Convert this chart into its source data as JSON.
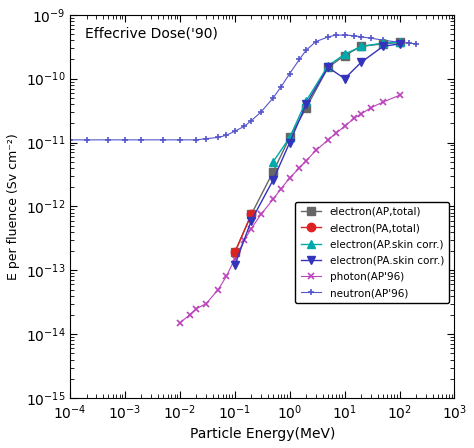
{
  "title": "Effecrive Dose('90)",
  "xlabel": "Particle Energy(MeV)",
  "ylabel": "E per fluence (Sv cm⁻²)",
  "xlim_log": [
    -4,
    3
  ],
  "ylim_log": [
    -15,
    -9
  ],
  "electron_AP_total": {
    "x": [
      0.1,
      0.2,
      0.5,
      1.0,
      2.0,
      5.0,
      10.0,
      20.0,
      50.0,
      100.0
    ],
    "y": [
      1.9e-13,
      7.5e-13,
      3.5e-12,
      1.2e-11,
      3.5e-11,
      1.5e-10,
      2.3e-10,
      3.2e-10,
      3.5e-10,
      3.7e-10
    ],
    "color": "#666666",
    "marker": "s",
    "label": "electron(AP,total)"
  },
  "electron_PA_total": {
    "x": [
      0.1,
      0.2
    ],
    "y": [
      1.9e-13,
      7.5e-13
    ],
    "color": "#dd2222",
    "marker": "o",
    "label": "electron(PA,total)"
  },
  "electron_AP_skin": {
    "x": [
      0.5,
      1.0,
      2.0,
      5.0,
      10.0,
      20.0,
      50.0,
      100.0
    ],
    "y": [
      5e-12,
      1.2e-11,
      4.5e-11,
      1.6e-10,
      2.4e-10,
      3.2e-10,
      3.6e-10,
      3.7e-10
    ],
    "color": "#00aaaa",
    "marker": "^",
    "label": "electron(AP.skin corr.)"
  },
  "electron_PA_skin": {
    "x": [
      0.1,
      0.2,
      0.5,
      1.0,
      2.0,
      5.0,
      10.0,
      20.0,
      50.0,
      100.0
    ],
    "y": [
      1.2e-13,
      6e-13,
      2.6e-12,
      1e-11,
      4e-11,
      1.5e-10,
      1e-10,
      1.8e-10,
      3.2e-10,
      3.5e-10
    ],
    "color": "#3333bb",
    "marker": "v",
    "label": "electron(PA.skin corr.)"
  },
  "photon_AP96": {
    "x": [
      0.01,
      0.015,
      0.02,
      0.03,
      0.05,
      0.07,
      0.1,
      0.15,
      0.2,
      0.3,
      0.5,
      0.7,
      1.0,
      1.5,
      2.0,
      3.0,
      5.0,
      7.0,
      10.0,
      15.0,
      20.0,
      30.0,
      50.0,
      100.0
    ],
    "y": [
      1.5e-14,
      2e-14,
      2.5e-14,
      3e-14,
      5e-14,
      8e-14,
      1.5e-13,
      3e-13,
      4.5e-13,
      7.5e-13,
      1.3e-12,
      1.9e-12,
      2.8e-12,
      4e-12,
      5.2e-12,
      7.5e-12,
      1.1e-11,
      1.4e-11,
      1.8e-11,
      2.4e-11,
      2.8e-11,
      3.5e-11,
      4.3e-11,
      5.5e-11
    ],
    "color": "#bb44bb",
    "marker": "x",
    "label": "photon(AP'96)"
  },
  "neutron_AP96": {
    "x": [
      0.0001,
      0.0002,
      0.0005,
      0.001,
      0.002,
      0.005,
      0.01,
      0.02,
      0.03,
      0.05,
      0.07,
      0.1,
      0.15,
      0.2,
      0.3,
      0.5,
      0.7,
      1.0,
      1.5,
      2.0,
      3.0,
      5.0,
      7.0,
      10.0,
      15.0,
      20.0,
      30.0,
      50.0,
      100.0,
      150.0,
      200.0
    ],
    "y": [
      1.1e-11,
      1.1e-11,
      1.1e-11,
      1.1e-11,
      1.1e-11,
      1.1e-11,
      1.1e-11,
      1.1e-11,
      1.15e-11,
      1.2e-11,
      1.3e-11,
      1.5e-11,
      1.8e-11,
      2.2e-11,
      3e-11,
      5e-11,
      7.5e-11,
      1.2e-10,
      2e-10,
      2.8e-10,
      3.8e-10,
      4.5e-10,
      4.8e-10,
      4.8e-10,
      4.7e-10,
      4.5e-10,
      4.3e-10,
      4e-10,
      3.7e-10,
      3.6e-10,
      3.5e-10
    ],
    "color": "#5555cc",
    "marker": "+",
    "label": "neutron(AP'96)"
  }
}
